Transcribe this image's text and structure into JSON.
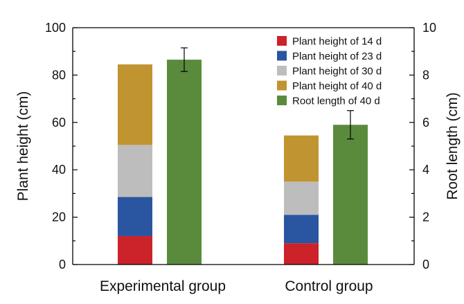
{
  "chart_data": {
    "type": "bar",
    "stacked_with_paired_bar": true,
    "categories": [
      "Experimental group",
      "Control group"
    ],
    "left_axis": {
      "label": "Plant height (cm)",
      "ylim": [
        0,
        100
      ],
      "ticks": [
        "0",
        "20",
        "40",
        "60",
        "80",
        "100"
      ]
    },
    "right_axis": {
      "label": "Root length (cm)",
      "ylim": [
        0,
        10
      ],
      "ticks": [
        "0",
        "2",
        "4",
        "6",
        "8",
        "10"
      ]
    },
    "stacked_series": [
      {
        "name": "Plant height of 14 d",
        "color": "#cc2229",
        "values": [
          12,
          9
        ]
      },
      {
        "name": "Plant height of 23 d",
        "color": "#2a55a0",
        "values": [
          16.5,
          12
        ]
      },
      {
        "name": "Plant height of 30 d",
        "color": "#bdbdbd",
        "values": [
          22,
          14
        ]
      },
      {
        "name": "Plant height of 40 d",
        "color": "#c09430",
        "values": [
          34,
          19.5
        ]
      }
    ],
    "root_series": {
      "name": "Root length of 40 d",
      "color": "#5a8b3d",
      "axis": "right",
      "values": [
        8.65,
        5.9
      ],
      "errors": [
        0.5,
        0.6
      ]
    },
    "grid": false,
    "legend_position": "top-right"
  }
}
